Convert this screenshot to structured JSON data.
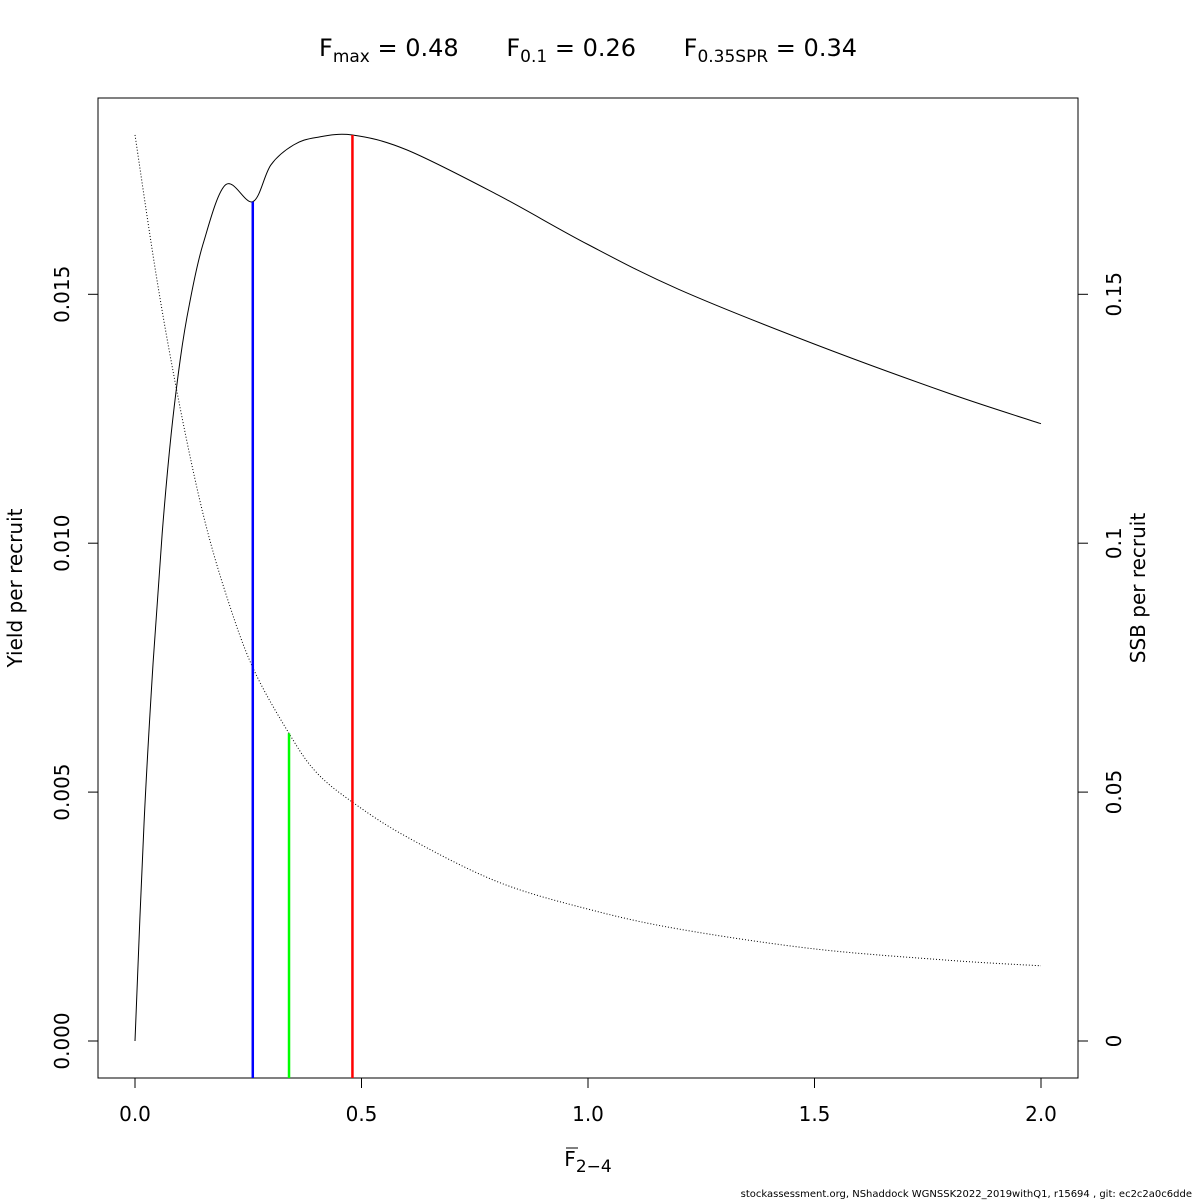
{
  "header": {
    "refpoints": [
      {
        "sym": "F",
        "sub": "max",
        "rel": " = ",
        "val": "0.48"
      },
      {
        "sym": "F",
        "sub": "0.1",
        "rel": " = ",
        "val": "0.26"
      },
      {
        "sym": "F",
        "sub": "0.35SPR",
        "rel": " = ",
        "val": "0.34"
      }
    ]
  },
  "footer": {
    "text": "stockassessment.org, NShaddock  WGNSSK2022_2019withQ1, r15694 , git: ec2c2a0c6dde"
  },
  "chart_data": {
    "type": "line",
    "title": "",
    "xlabel": {
      "base": "F",
      "sub": "2−4"
    },
    "ylabel_left": "Yield per recruit",
    "ylabel_right": "SSB per recruit",
    "xlim": [
      0,
      2
    ],
    "ylim_left": [
      0,
      0.0182
    ],
    "ylim_right": [
      0,
      0.182
    ],
    "x_ticks": [
      "0.0",
      "0.5",
      "1.0",
      "1.5",
      "2.0"
    ],
    "y_left_ticks": [
      "0.000",
      "0.005",
      "0.010",
      "0.015"
    ],
    "y_right_ticks": [
      "0",
      "0.05",
      "0.1",
      "0.15"
    ],
    "grid": false,
    "legend": "none",
    "series": [
      {
        "axis": "left",
        "style": "solid",
        "color": "#000000",
        "x": [
          0,
          0.02,
          0.04,
          0.06,
          0.08,
          0.1,
          0.12,
          0.15,
          0.2,
          0.26,
          0.3,
          0.35,
          0.4,
          0.48,
          0.6,
          0.8,
          1.0,
          1.2,
          1.5,
          1.8,
          2.0
        ],
        "values": [
          0,
          0.0044,
          0.0076,
          0.0102,
          0.0122,
          0.0137,
          0.0148,
          0.016,
          0.0172,
          0.01686,
          0.0176,
          0.018,
          0.01815,
          0.0182,
          0.0179,
          0.017,
          0.016,
          0.0151,
          0.014,
          0.013,
          0.0124
        ]
      },
      {
        "axis": "right",
        "style": "dotted",
        "color": "#000000",
        "x": [
          0,
          0.05,
          0.1,
          0.15,
          0.2,
          0.26,
          0.34,
          0.4,
          0.48,
          0.6,
          0.8,
          1.0,
          1.2,
          1.5,
          1.8,
          2.0
        ],
        "values": [
          0.182,
          0.152,
          0.127,
          0.106,
          0.09,
          0.075,
          0.0618,
          0.054,
          0.048,
          0.041,
          0.032,
          0.0265,
          0.0225,
          0.0185,
          0.0162,
          0.0151
        ]
      }
    ],
    "vlines": [
      {
        "name": "F0.1",
        "x": 0.26,
        "y_top": 0.01686,
        "axis": "left",
        "color": "#0000ff"
      },
      {
        "name": "F0.35SPR",
        "x": 0.34,
        "y_top": 0.0618,
        "axis": "right",
        "color": "#00ff00"
      },
      {
        "name": "Fmax",
        "x": 0.48,
        "y_top": 0.0182,
        "axis": "left",
        "color": "#ff0000"
      }
    ]
  }
}
